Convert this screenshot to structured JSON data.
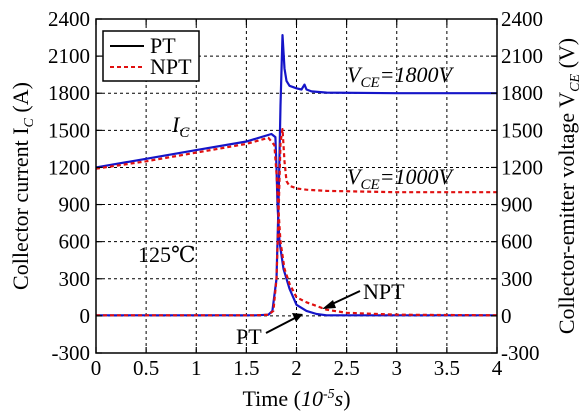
{
  "chart_data": {
    "type": "line",
    "xlabel_main": "Time (",
    "xlabel_unit_base": "10",
    "xlabel_unit_exp": "-5",
    "xlabel_unit_tail": "s",
    "xlabel_close": ")",
    "ylabel_left": "Collector current I",
    "ylabel_left_sub": "C",
    "ylabel_left_unit": " (A)",
    "ylabel_right": "Collector-emitter voltage V",
    "ylabel_right_sub": "CE",
    "ylabel_right_unit": " (V)",
    "xlim": [
      0,
      4
    ],
    "ylim": [
      -300,
      2400
    ],
    "grid": true,
    "x_ticks": [
      "0",
      "0.5",
      "1",
      "1.5",
      "2",
      "2.5",
      "3",
      "3.5",
      "4"
    ],
    "y_ticks": [
      "-300",
      "0",
      "300",
      "600",
      "900",
      "1200",
      "1500",
      "1800",
      "2100",
      "2400"
    ],
    "legend": {
      "placement": "top-left",
      "entries": [
        "PT",
        "NPT"
      ]
    },
    "annotations": {
      "ic_label": "I",
      "ic_sub": "C",
      "vce1800_v": "V",
      "vce1800_sub": "CE",
      "vce1800_val": "=1800V",
      "vce1000_v": "V",
      "vce1000_sub": "CE",
      "vce1000_val": "=1000V",
      "temp": "125℃",
      "npt_arrow": "NPT",
      "pt_arrow": "PT"
    },
    "colors": {
      "PT": "#1515c8",
      "NPT": "#e01010",
      "text": "#000000"
    },
    "series": [
      {
        "name": "PT",
        "style": "solid",
        "segments": [
          {
            "x": [
              0,
              0.5,
              1.0,
              1.5,
              1.75,
              1.79,
              1.8,
              1.81,
              1.83,
              1.87,
              1.93,
              2.0,
              2.1,
              2.2,
              2.3,
              2.5,
              3.0,
              4.0
            ],
            "y": [
              1200,
              1270,
              1340,
              1410,
              1470,
              1445,
              1200,
              900,
              600,
              380,
              220,
              90,
              40,
              15,
              5,
              5,
              5,
              5
            ]
          },
          {
            "x": [
              0,
              1.6,
              1.72,
              1.76,
              1.8,
              1.82,
              1.84,
              1.86,
              1.88,
              1.9,
              1.93,
              2.0,
              2.05,
              2.08,
              2.1,
              2.15,
              2.3,
              3.0,
              4.0
            ],
            "y": [
              5,
              5,
              10,
              40,
              300,
              900,
              1700,
              2270,
              2000,
              1900,
              1860,
              1840,
              1830,
              1870,
              1830,
              1815,
              1805,
              1800,
              1800
            ]
          }
        ]
      },
      {
        "name": "NPT",
        "style": "dashed",
        "segments": [
          {
            "x": [
              0,
              0.5,
              1.0,
              1.5,
              1.72,
              1.78,
              1.8,
              1.82,
              1.84,
              1.88,
              1.93,
              2.0,
              2.1,
              2.2,
              2.3,
              2.5,
              3.0,
              4.0
            ],
            "y": [
              1190,
              1250,
              1320,
              1390,
              1440,
              1380,
              1150,
              850,
              600,
              380,
              260,
              150,
              110,
              80,
              50,
              25,
              10,
              5
            ]
          },
          {
            "x": [
              0,
              1.6,
              1.72,
              1.77,
              1.8,
              1.82,
              1.84,
              1.86,
              1.88,
              1.9,
              1.93,
              1.97,
              2.0,
              2.1,
              2.3,
              3.0,
              4.0
            ],
            "y": [
              5,
              5,
              10,
              40,
              300,
              800,
              1400,
              1510,
              1250,
              1090,
              1050,
              1040,
              1030,
              1020,
              1010,
              1000,
              1000
            ]
          }
        ]
      }
    ]
  }
}
